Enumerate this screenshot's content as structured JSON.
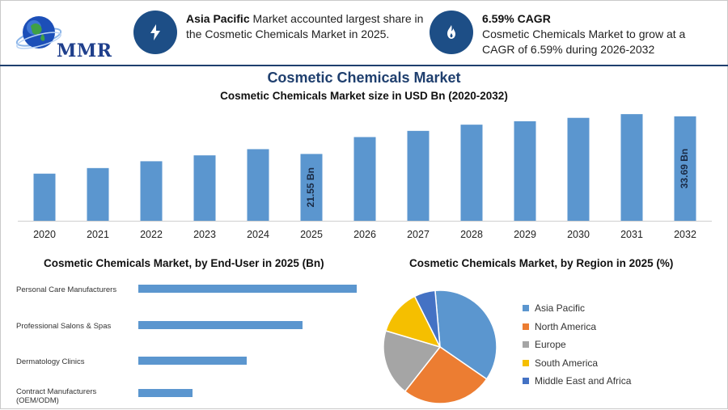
{
  "header": {
    "logo": {
      "text": "MMR"
    },
    "left_info": {
      "highlight": "Asia Pacific",
      "text": " Market accounted largest share in the Cosmetic Chemicals Market in 2025.",
      "icon": "lightning-icon"
    },
    "right_info": {
      "highlight": "6.59% CAGR",
      "text": "Cosmetic Chemicals Market to grow at a CAGR of 6.59% during 2026-2032",
      "icon": "flame-icon"
    }
  },
  "colors": {
    "accent": "#1d4e86",
    "bar": "#5b96cf",
    "title": "#1f3f6e"
  },
  "chart_data": [
    {
      "type": "bar",
      "title": "Cosmetic Chemicals Market",
      "subtitle": "Cosmetic Chemicals Market size in USD Bn (2020-2032)",
      "categories": [
        "2020",
        "2021",
        "2022",
        "2023",
        "2024",
        "2025",
        "2026",
        "2027",
        "2028",
        "2029",
        "2030",
        "2031",
        "2032"
      ],
      "values": [
        15.2,
        17.0,
        19.2,
        21.1,
        23.1,
        21.55,
        27.0,
        29.0,
        31.0,
        32.1,
        33.2,
        34.4,
        33.69
      ],
      "data_labels": [
        {
          "category": "2025",
          "text": "21.55 Bn"
        },
        {
          "category": "2032",
          "text": "33.69 Bn"
        }
      ],
      "ylim": [
        0,
        36
      ],
      "grid": false
    },
    {
      "type": "bar",
      "orientation": "horizontal",
      "title": "Cosmetic Chemicals Market, by End-User in 2025 (Bn)",
      "categories": [
        "Personal Care Manufacturers",
        "Professional Salons & Spas",
        "Dermatology Clinics",
        "Contract Manufacturers (OEM/ODM)"
      ],
      "values": [
        10.1,
        7.6,
        5.0,
        2.5
      ],
      "xlim": [
        0,
        10.1
      ]
    },
    {
      "type": "pie",
      "title": "Cosmetic Chemicals Market, by Region in 2025 (%)",
      "categories": [
        "Asia Pacific",
        "North America",
        "Europe",
        "South America",
        "Middle East and Africa"
      ],
      "values": [
        36,
        26,
        19,
        13,
        6
      ],
      "colors": [
        "#5b96cf",
        "#ec7d32",
        "#a5a5a5",
        "#f5bf00",
        "#4472c4"
      ],
      "legend": "right"
    }
  ]
}
